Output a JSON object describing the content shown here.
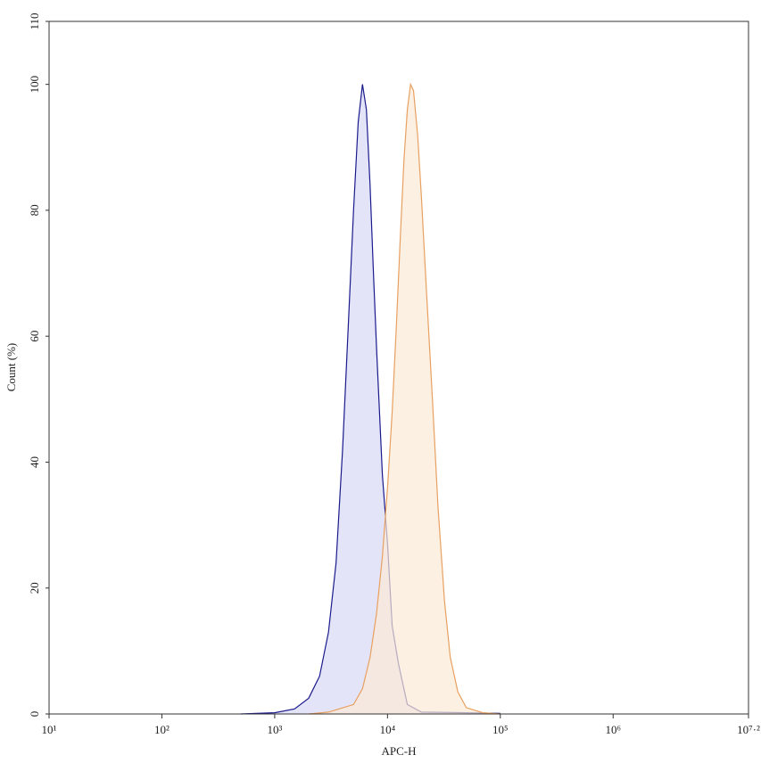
{
  "chart_data": {
    "type": "histogram-overlay",
    "x_label": "APC-H",
    "y_label": "Count (%)",
    "xscale": "log",
    "xlim": [
      10,
      15848932
    ],
    "xticks": [
      {
        "value": 10,
        "label": "10¹"
      },
      {
        "value": 100,
        "label": "10²"
      },
      {
        "value": 1000,
        "label": "10³"
      },
      {
        "value": 10000,
        "label": "10⁴"
      },
      {
        "value": 100000,
        "label": "10⁵"
      },
      {
        "value": 1000000,
        "label": "10⁶"
      },
      {
        "value": 15848932,
        "label": "10⁷·²"
      }
    ],
    "ylim": [
      0,
      110
    ],
    "yticks": [
      0,
      20,
      40,
      60,
      80,
      100,
      110
    ],
    "series": [
      {
        "color": "#1a1a8c",
        "fill": "#d8d8f6",
        "x": [
          500,
          1000,
          1500,
          2000,
          2500,
          3000,
          3500,
          4000,
          4500,
          5000,
          5500,
          6000,
          6500,
          7000,
          7500,
          8000,
          9000,
          10000,
          11000,
          12500,
          15000,
          20000,
          50000,
          100000
        ],
        "values": [
          0,
          0.2,
          0.8,
          2.5,
          6,
          13,
          24,
          42,
          62,
          80,
          94,
          100,
          96,
          84,
          70,
          58,
          38,
          27,
          14,
          8,
          1.5,
          0.3,
          0.2,
          0.1
        ]
      },
      {
        "color": "#e8a060",
        "fill": "#fbe9d6",
        "x": [
          2000,
          3000,
          5000,
          6000,
          7000,
          8000,
          9000,
          10000,
          11000,
          12000,
          13000,
          14000,
          15000,
          16000,
          17000,
          18500,
          20000,
          22000,
          25000,
          28000,
          32000,
          36000,
          42000,
          50000,
          70000,
          100000
        ],
        "values": [
          0,
          0.3,
          1.5,
          4,
          9,
          16,
          25,
          36,
          48,
          62,
          76,
          88,
          96,
          100,
          99,
          92,
          82,
          68,
          50,
          33,
          18,
          9,
          3.5,
          1,
          0.2,
          0
        ]
      }
    ]
  }
}
